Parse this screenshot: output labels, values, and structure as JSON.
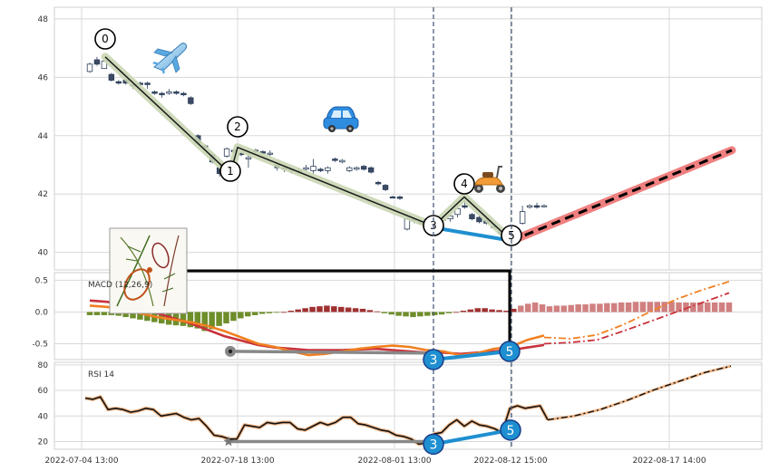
{
  "chart_data": {
    "type": "line",
    "x_ticks": [
      "2022-07-04 13:00",
      "2022-07-18 13:00",
      "2022-08-01 13:00",
      "2022-08-12 15:00",
      "2022-08-17 14:00"
    ],
    "price_panel": {
      "ylim": [
        39.4,
        48.4
      ],
      "yticks": [
        "40",
        "42",
        "44",
        "46",
        "48"
      ],
      "candles": [
        {
          "o": 46.2,
          "c": 46.45,
          "h": 46.5,
          "l": 46.15,
          "up": true
        },
        {
          "o": 46.6,
          "c": 46.45,
          "h": 46.7,
          "l": 46.4,
          "up": false
        },
        {
          "o": 46.3,
          "c": 46.55,
          "h": 46.6,
          "l": 46.3,
          "up": true
        },
        {
          "o": 46.1,
          "c": 45.9,
          "h": 46.15,
          "l": 45.85,
          "up": false
        },
        {
          "o": 45.85,
          "c": 45.8,
          "h": 45.9,
          "l": 45.75,
          "up": false
        },
        {
          "o": 45.9,
          "c": 45.8,
          "h": 45.95,
          "l": 45.75,
          "up": false
        },
        {
          "o": 45.75,
          "c": 45.7,
          "h": 45.8,
          "l": 45.6,
          "up": false
        },
        {
          "o": 45.8,
          "c": 45.75,
          "h": 45.85,
          "l": 45.7,
          "up": false
        },
        {
          "o": 45.8,
          "c": 45.75,
          "h": 45.85,
          "l": 45.6,
          "up": false
        },
        {
          "o": 45.5,
          "c": 45.45,
          "h": 45.55,
          "l": 45.4,
          "up": false
        },
        {
          "o": 45.45,
          "c": 45.4,
          "h": 45.5,
          "l": 45.3,
          "up": false
        },
        {
          "o": 45.45,
          "c": 45.5,
          "h": 45.6,
          "l": 45.4,
          "up": true
        },
        {
          "o": 45.5,
          "c": 45.45,
          "h": 45.55,
          "l": 45.4,
          "up": false
        },
        {
          "o": 45.45,
          "c": 45.4,
          "h": 45.5,
          "l": 45.35,
          "up": false
        },
        {
          "o": 45.3,
          "c": 45.1,
          "h": 45.35,
          "l": 45.05,
          "up": false
        },
        {
          "o": 44.0,
          "c": 43.75,
          "h": 44.05,
          "l": 43.7,
          "up": false
        },
        {
          "o": 43.65,
          "c": 43.6,
          "h": 43.7,
          "l": 43.5,
          "up": false
        },
        {
          "o": 43.35,
          "c": 43.1,
          "h": 43.4,
          "l": 43.05,
          "up": false
        },
        {
          "o": 42.9,
          "c": 42.7,
          "h": 43.0,
          "l": 42.6,
          "up": false
        },
        {
          "o": 43.3,
          "c": 43.55,
          "h": 43.6,
          "l": 43.25,
          "up": true
        },
        {
          "o": 43.5,
          "c": 43.45,
          "h": 43.55,
          "l": 43.4,
          "up": false
        },
        {
          "o": 43.4,
          "c": 43.35,
          "h": 43.45,
          "l": 43.3,
          "up": false
        },
        {
          "o": 43.2,
          "c": 43.25,
          "h": 43.5,
          "l": 42.9,
          "up": true
        },
        {
          "o": 43.5,
          "c": 43.45,
          "h": 43.55,
          "l": 43.4,
          "up": false
        },
        {
          "o": 43.45,
          "c": 43.4,
          "h": 43.5,
          "l": 43.35,
          "up": false
        },
        {
          "o": 43.4,
          "c": 43.4,
          "h": 43.5,
          "l": 43.3,
          "up": true
        },
        {
          "o": 43.0,
          "c": 42.9,
          "h": 43.05,
          "l": 42.8,
          "up": false
        },
        {
          "o": 42.9,
          "c": 42.85,
          "h": 42.95,
          "l": 42.75,
          "up": false
        },
        {
          "o": 42.85,
          "c": 42.8,
          "h": 42.9,
          "l": 42.7,
          "up": false
        },
        {
          "o": 42.8,
          "c": 42.75,
          "h": 42.9,
          "l": 42.7,
          "up": false
        },
        {
          "o": 42.85,
          "c": 42.9,
          "h": 43.0,
          "l": 42.8,
          "up": true
        },
        {
          "o": 42.8,
          "c": 42.95,
          "h": 43.2,
          "l": 42.7,
          "up": true
        },
        {
          "o": 42.85,
          "c": 42.8,
          "h": 42.9,
          "l": 42.75,
          "up": false
        },
        {
          "o": 42.8,
          "c": 42.9,
          "h": 42.95,
          "l": 42.7,
          "up": true
        },
        {
          "o": 43.2,
          "c": 43.15,
          "h": 43.25,
          "l": 43.1,
          "up": false
        },
        {
          "o": 43.1,
          "c": 43.15,
          "h": 43.2,
          "l": 43.05,
          "up": true
        },
        {
          "o": 42.8,
          "c": 42.9,
          "h": 42.95,
          "l": 42.75,
          "up": true
        },
        {
          "o": 42.85,
          "c": 42.9,
          "h": 42.95,
          "l": 42.8,
          "up": true
        },
        {
          "o": 42.95,
          "c": 42.85,
          "h": 43.0,
          "l": 42.8,
          "up": false
        },
        {
          "o": 42.9,
          "c": 42.75,
          "h": 42.95,
          "l": 42.7,
          "up": false
        },
        {
          "o": 42.4,
          "c": 42.35,
          "h": 42.45,
          "l": 42.3,
          "up": false
        },
        {
          "o": 42.3,
          "c": 42.15,
          "h": 42.35,
          "l": 42.1,
          "up": false
        },
        {
          "o": 41.9,
          "c": 41.9,
          "h": 41.95,
          "l": 41.85,
          "up": false
        },
        {
          "o": 41.9,
          "c": 41.85,
          "h": 41.95,
          "l": 41.8,
          "up": false
        },
        {
          "o": 40.8,
          "c": 41.15,
          "h": 41.2,
          "l": 40.75,
          "up": true
        },
        {
          "o": 41.15,
          "c": 41.1,
          "h": 41.2,
          "l": 41.0,
          "up": false
        },
        {
          "o": 41.0,
          "c": 41.05,
          "h": 41.1,
          "l": 40.95,
          "up": true
        },
        {
          "o": 40.9,
          "c": 40.85,
          "h": 40.95,
          "l": 40.8,
          "up": false
        },
        {
          "o": 40.9,
          "c": 41.1,
          "h": 41.15,
          "l": 40.85,
          "up": true
        },
        {
          "o": 41.1,
          "c": 41.15,
          "h": 41.25,
          "l": 41.0,
          "up": true
        },
        {
          "o": 41.15,
          "c": 41.25,
          "h": 41.3,
          "l": 41.05,
          "up": true
        },
        {
          "o": 41.3,
          "c": 41.5,
          "h": 41.6,
          "l": 41.2,
          "up": true
        },
        {
          "o": 41.6,
          "c": 41.55,
          "h": 41.8,
          "l": 41.5,
          "up": false
        },
        {
          "o": 41.3,
          "c": 41.15,
          "h": 41.35,
          "l": 41.1,
          "up": false
        },
        {
          "o": 41.2,
          "c": 41.05,
          "h": 41.25,
          "l": 41.0,
          "up": false
        },
        {
          "o": 41.1,
          "c": 41.0,
          "h": 41.15,
          "l": 40.95,
          "up": false
        },
        {
          "o": 40.9,
          "c": 40.85,
          "h": 40.95,
          "l": 40.8,
          "up": false
        },
        {
          "o": 40.7,
          "c": 40.65,
          "h": 40.75,
          "l": 40.6,
          "up": false
        },
        {
          "o": 40.6,
          "c": 40.55,
          "h": 40.65,
          "l": 40.5,
          "up": false
        },
        {
          "o": 40.5,
          "c": 40.6,
          "h": 40.65,
          "l": 40.45,
          "up": true
        },
        {
          "o": 41.0,
          "c": 41.4,
          "h": 41.6,
          "l": 40.95,
          "up": true
        },
        {
          "o": 41.55,
          "c": 41.6,
          "h": 41.65,
          "l": 41.5,
          "up": true
        },
        {
          "o": 41.6,
          "c": 41.55,
          "h": 41.7,
          "l": 41.5,
          "up": false
        },
        {
          "o": 41.6,
          "c": 41.6,
          "h": 41.65,
          "l": 41.55,
          "up": true
        }
      ],
      "wave": [
        46.7,
        42.7,
        43.6,
        40.9,
        41.9,
        40.4
      ],
      "wave_labels": [
        "0",
        "1",
        "2",
        "3",
        "4",
        "5"
      ],
      "abc_line": [
        40.85,
        40.4
      ],
      "projection": [
        40.4,
        43.5
      ]
    },
    "macd_panel": {
      "label": "MACD (12,26,9)",
      "ylim": [
        -0.75,
        0.62
      ],
      "yticks": [
        "0.5",
        "0.0",
        "-0.5"
      ],
      "hist": [
        -0.05,
        -0.05,
        -0.05,
        -0.05,
        -0.06,
        -0.08,
        -0.1,
        -0.12,
        -0.14,
        -0.16,
        -0.18,
        -0.2,
        -0.21,
        -0.22,
        -0.24,
        -0.26,
        -0.3,
        -0.27,
        -0.22,
        -0.18,
        -0.14,
        -0.1,
        -0.07,
        -0.05,
        -0.03,
        -0.02,
        -0.01,
        0.0,
        0.02,
        0.04,
        0.06,
        0.08,
        0.09,
        0.1,
        0.09,
        0.08,
        0.07,
        0.06,
        0.05,
        0.03,
        0.01,
        -0.02,
        -0.04,
        -0.06,
        -0.07,
        -0.08,
        -0.07,
        -0.06,
        -0.05,
        -0.04,
        -0.02,
        0.0,
        0.02,
        0.04,
        0.06,
        0.06,
        0.04,
        0.03,
        0.02,
        0.05,
        0.1,
        0.13,
        0.15,
        0.12,
        0.09,
        0.1,
        0.1,
        0.11,
        0.12,
        0.12,
        0.13,
        0.13,
        0.14,
        0.14,
        0.15,
        0.15,
        0.16,
        0.16,
        0.16,
        0.16,
        0.16,
        0.16,
        0.15,
        0.15,
        0.15,
        0.15,
        0.15,
        0.15,
        0.15,
        0.15
      ],
      "macd": [
        0.1,
        0.08,
        0.04,
        -0.02,
        -0.08,
        -0.12,
        -0.16,
        -0.22,
        -0.3,
        -0.4,
        -0.5,
        -0.55,
        -0.62,
        -0.68,
        -0.66,
        -0.62,
        -0.58,
        -0.55,
        -0.53,
        -0.55,
        -0.6,
        -0.62,
        -0.68,
        -0.65,
        -0.58,
        -0.55,
        -0.44,
        -0.37
      ],
      "signal": [
        0.18,
        0.16,
        0.12,
        0.06,
        -0.02,
        -0.1,
        -0.18,
        -0.28,
        -0.38,
        -0.45,
        -0.52,
        -0.56,
        -0.58,
        -0.6,
        -0.6,
        -0.6,
        -0.59,
        -0.58,
        -0.6,
        -0.62,
        -0.64,
        -0.64,
        -0.66,
        -0.64,
        -0.62,
        -0.6,
        -0.56,
        -0.52
      ],
      "macd_proj": [
        -0.4,
        -0.42,
        -0.36,
        -0.2,
        0.0,
        0.2,
        0.35,
        0.48
      ],
      "signal_proj": [
        -0.5,
        -0.48,
        -0.44,
        -0.3,
        -0.15,
        0.0,
        0.15,
        0.3
      ],
      "wave_markers": [
        -0.62,
        -0.75,
        -0.62
      ],
      "wave_labels": [
        "3",
        "5"
      ]
    },
    "rsi_panel": {
      "label": "RSI 14",
      "ylim": [
        14,
        82
      ],
      "yticks": [
        "80",
        "60",
        "40",
        "20"
      ],
      "values": [
        54,
        53,
        55,
        45,
        46,
        45,
        43,
        44,
        46,
        45,
        40,
        41,
        42,
        39,
        37,
        38,
        32,
        25,
        24,
        22,
        22,
        33,
        32,
        31,
        35,
        34,
        35,
        35,
        30,
        29,
        32,
        35,
        33,
        35,
        39,
        39,
        34,
        33,
        31,
        29,
        28,
        25,
        24,
        22,
        18,
        19,
        26,
        27,
        33,
        37,
        32,
        36,
        33,
        32,
        30,
        27,
        46,
        48,
        46,
        47,
        48,
        37
      ],
      "proj": [
        37,
        40,
        45,
        52,
        60,
        67,
        74,
        79
      ],
      "wave_markers": [
        20,
        18,
        29
      ],
      "wave_labels": [
        "3",
        "5"
      ]
    }
  }
}
